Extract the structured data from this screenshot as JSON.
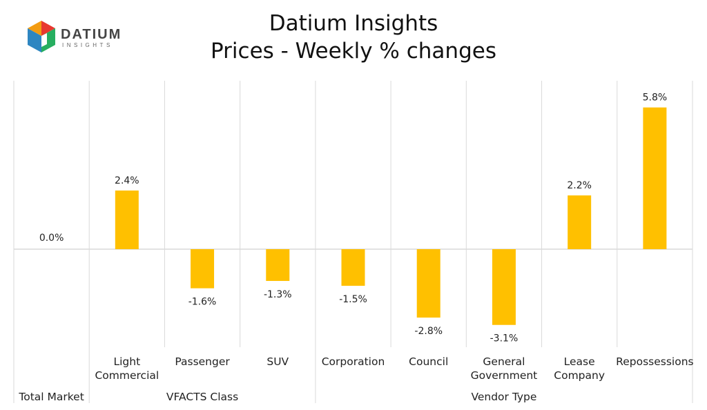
{
  "logo": {
    "name": "DATIUM",
    "tagline": "INSIGHTS"
  },
  "header": {
    "title": "Datium Insights",
    "subtitle": "Prices - Weekly % changes"
  },
  "colors": {
    "bar": "#FFC000",
    "grid": "#d9d9d9",
    "text": "#222222"
  },
  "chart_data": {
    "type": "bar",
    "title": "Prices - Weekly % changes",
    "categories": [
      [
        "Total Market"
      ],
      [
        "Light",
        "Commercial"
      ],
      [
        "Passenger"
      ],
      [
        "SUV"
      ],
      [
        "Corporation"
      ],
      [
        "Council"
      ],
      [
        "General",
        "Government"
      ],
      [
        "Lease",
        "Company"
      ],
      [
        "Repossessions"
      ]
    ],
    "values": [
      0.0,
      2.4,
      -1.6,
      -1.3,
      -1.5,
      -2.8,
      -3.1,
      2.2,
      5.8
    ],
    "data_labels": [
      "0.0%",
      "2.4%",
      "-1.6%",
      "-1.3%",
      "-1.5%",
      "-2.8%",
      "-3.1%",
      "2.2%",
      "5.8%"
    ],
    "groups": [
      {
        "label": "Total Market",
        "start": 0,
        "end": 0
      },
      {
        "label": "VFACTS Class",
        "start": 1,
        "end": 3
      },
      {
        "label": "Vendor Type",
        "start": 4,
        "end": 8
      }
    ],
    "unit": "%",
    "ylim": [
      -4.0,
      6.5
    ],
    "grid": true,
    "legend": "none"
  }
}
